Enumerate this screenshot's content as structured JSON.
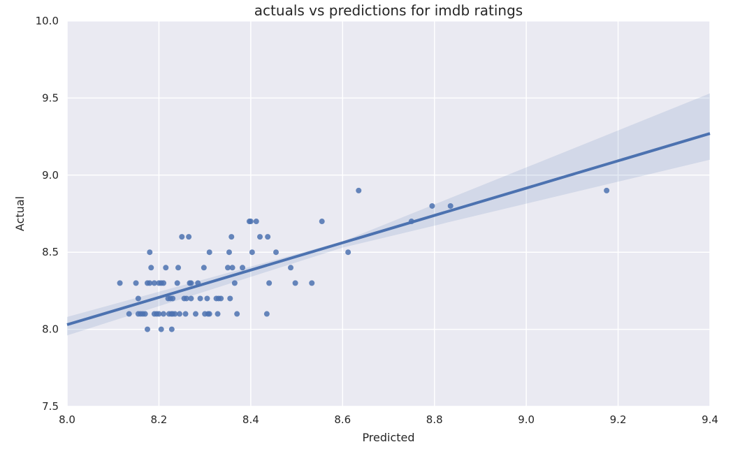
{
  "chart_data": {
    "type": "scatter",
    "title": "actuals vs predictions for imdb ratings",
    "xlabel": "Predicted",
    "ylabel": "Actual",
    "xlim": [
      8.0,
      9.4
    ],
    "ylim": [
      7.5,
      10.0
    ],
    "xticks": [
      "8.0",
      "8.2",
      "8.4",
      "8.6",
      "8.8",
      "9.0",
      "9.2",
      "9.4"
    ],
    "yticks": [
      "7.5",
      "8.0",
      "8.5",
      "9.0",
      "9.5",
      "10.0"
    ],
    "grid": true,
    "colors": {
      "background": "#eaeaf2",
      "grid": "#ffffff",
      "points": "#4c72b0",
      "line": "#4c72b0",
      "band": "#4c72b0"
    },
    "points": [
      [
        8.115,
        8.3
      ],
      [
        8.135,
        8.1
      ],
      [
        8.15,
        8.3
      ],
      [
        8.155,
        8.1
      ],
      [
        8.155,
        8.2
      ],
      [
        8.16,
        8.1
      ],
      [
        8.165,
        8.1
      ],
      [
        8.17,
        8.1
      ],
      [
        8.175,
        8.3
      ],
      [
        8.175,
        8.0
      ],
      [
        8.18,
        8.3
      ],
      [
        8.18,
        8.5
      ],
      [
        8.183,
        8.4
      ],
      [
        8.19,
        8.3
      ],
      [
        8.19,
        8.1
      ],
      [
        8.195,
        8.1
      ],
      [
        8.2,
        8.3
      ],
      [
        8.2,
        8.1
      ],
      [
        8.205,
        8.3
      ],
      [
        8.205,
        8.0
      ],
      [
        8.21,
        8.3
      ],
      [
        8.21,
        8.1
      ],
      [
        8.215,
        8.4
      ],
      [
        8.22,
        8.2
      ],
      [
        8.222,
        8.1
      ],
      [
        8.225,
        8.2
      ],
      [
        8.227,
        8.1
      ],
      [
        8.228,
        8.0
      ],
      [
        8.23,
        8.2
      ],
      [
        8.23,
        8.1
      ],
      [
        8.235,
        8.1
      ],
      [
        8.24,
        8.3
      ],
      [
        8.242,
        8.4
      ],
      [
        8.245,
        8.1
      ],
      [
        8.25,
        8.6
      ],
      [
        8.255,
        8.2
      ],
      [
        8.258,
        8.1
      ],
      [
        8.26,
        8.2
      ],
      [
        8.265,
        8.6
      ],
      [
        8.267,
        8.3
      ],
      [
        8.27,
        8.3
      ],
      [
        8.27,
        8.2
      ],
      [
        8.28,
        8.1
      ],
      [
        8.285,
        8.3
      ],
      [
        8.29,
        8.2
      ],
      [
        8.298,
        8.4
      ],
      [
        8.3,
        8.1
      ],
      [
        8.305,
        8.2
      ],
      [
        8.307,
        8.1
      ],
      [
        8.31,
        8.5
      ],
      [
        8.31,
        8.1
      ],
      [
        8.325,
        8.2
      ],
      [
        8.328,
        8.1
      ],
      [
        8.33,
        8.2
      ],
      [
        8.335,
        8.2
      ],
      [
        8.35,
        8.4
      ],
      [
        8.353,
        8.5
      ],
      [
        8.355,
        8.2
      ],
      [
        8.358,
        8.6
      ],
      [
        8.36,
        8.4
      ],
      [
        8.365,
        8.3
      ],
      [
        8.37,
        8.1
      ],
      [
        8.382,
        8.4
      ],
      [
        8.397,
        8.7
      ],
      [
        8.4,
        8.7
      ],
      [
        8.403,
        8.5
      ],
      [
        8.412,
        8.7
      ],
      [
        8.42,
        8.6
      ],
      [
        8.435,
        8.1
      ],
      [
        8.437,
        8.6
      ],
      [
        8.44,
        8.3
      ],
      [
        8.455,
        8.5
      ],
      [
        8.487,
        8.4
      ],
      [
        8.497,
        8.3
      ],
      [
        8.533,
        8.3
      ],
      [
        8.555,
        8.7
      ],
      [
        8.612,
        8.5
      ],
      [
        8.635,
        8.9
      ],
      [
        8.75,
        8.7
      ],
      [
        8.795,
        8.8
      ],
      [
        8.835,
        8.8
      ],
      [
        9.175,
        8.9
      ]
    ],
    "regression": {
      "x_start": 8.0,
      "y_start": 8.03,
      "x_end": 9.4,
      "y_end": 9.27,
      "ci_upper": [
        [
          8.0,
          8.08
        ],
        [
          8.6,
          8.57
        ],
        [
          9.4,
          9.53
        ]
      ],
      "ci_lower": [
        [
          8.0,
          7.96
        ],
        [
          8.6,
          8.53
        ],
        [
          9.4,
          9.1
        ]
      ]
    }
  }
}
